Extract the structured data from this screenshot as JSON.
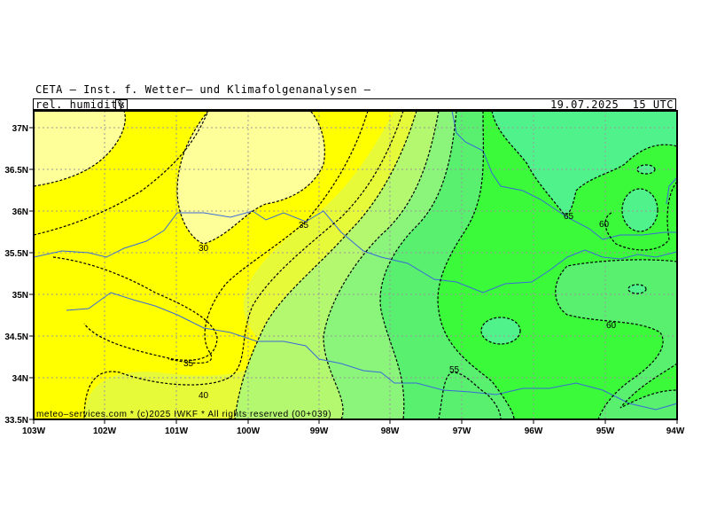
{
  "header": {
    "title": "CETA – Inst. f. Wetter– und Klimafolgenanalysen –",
    "parameter": "rel._humidity_",
    "unit": "%",
    "datetime": "19.07.2025  15 UTC"
  },
  "map": {
    "lon_labels": [
      "103W",
      "102W",
      "101W",
      "100W",
      "99W",
      "98W",
      "97W",
      "96W",
      "95W",
      "94W"
    ],
    "lat_labels": [
      "37N",
      "36.5N",
      "36N",
      "35.5N",
      "35N",
      "34.5N",
      "34N",
      "33.5N"
    ],
    "contour_labels": [
      "30",
      "35",
      "35",
      "40",
      "55",
      "65",
      "60",
      "60"
    ],
    "copyright": "meteo–services.com * (c)2025 IWKF * All rights reserved (00+039)"
  },
  "colors": {
    "h25": "#ffff9a",
    "h30": "#ffff00",
    "h35": "#e6fa3a",
    "h40": "#b4f870",
    "h50": "#8af57a",
    "h55": "#58f06e",
    "h60": "#3afa3a",
    "h65": "#50f28c",
    "grid": "#999999",
    "border": "#3a6ad8"
  }
}
